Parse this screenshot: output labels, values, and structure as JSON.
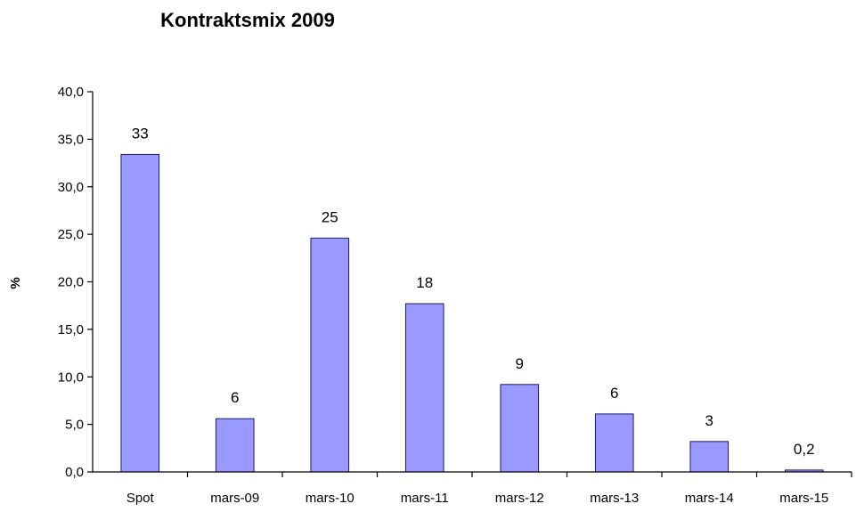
{
  "chart_data": {
    "type": "bar",
    "title": "Kontraktsmix 2009",
    "xlabel": "",
    "ylabel": "%",
    "categories": [
      "Spot",
      "mars-09",
      "mars-10",
      "mars-11",
      "mars-12",
      "mars-13",
      "mars-14",
      "mars-15"
    ],
    "values": [
      33.4,
      5.6,
      24.6,
      17.7,
      9.2,
      6.1,
      3.2,
      0.2
    ],
    "data_labels": [
      "33",
      "6",
      "25",
      "18",
      "9",
      "6",
      "3",
      "0,2"
    ],
    "ylim": [
      0,
      40
    ],
    "y_ticks": [
      0,
      5,
      10,
      15,
      20,
      25,
      30,
      35,
      40
    ],
    "y_tick_labels": [
      "0,0",
      "5,0",
      "10,0",
      "15,0",
      "20,0",
      "25,0",
      "30,0",
      "35,0",
      "40,0"
    ],
    "bar_color": "#9999ff",
    "grid": false,
    "legend": "none"
  }
}
